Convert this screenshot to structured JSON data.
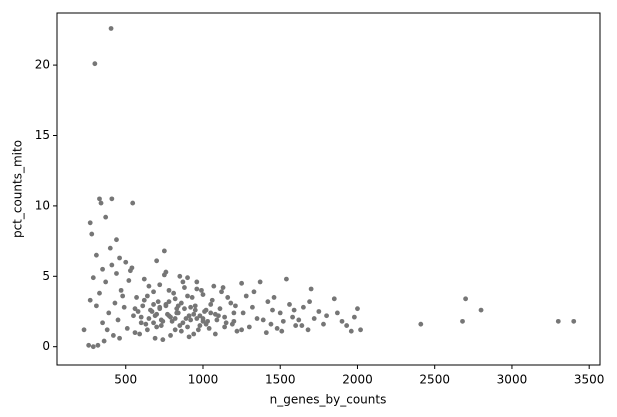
{
  "chart_data": {
    "type": "scatter",
    "x_label": "n_genes_by_counts",
    "y_label": "pct_counts_mito",
    "color": "#767676",
    "xlim": [
      55,
      3570
    ],
    "ylim": [
      -1.3,
      23.7
    ],
    "xticks": [
      500,
      1000,
      1500,
      2000,
      2500,
      3000,
      3500
    ],
    "yticks": [
      0,
      5,
      10,
      15,
      20
    ],
    "x": [
      405,
      300,
      330,
      340,
      410,
      545,
      370,
      270,
      280,
      440,
      310,
      750,
      2700,
      2800,
      2680,
      2410,
      3300,
      3400,
      1850,
      2000,
      1540,
      1700,
      1250,
      1370,
      230,
      260,
      290,
      320,
      1960,
      2020,
      1900,
      1800,
      1750,
      1650,
      1600,
      1580,
      1450,
      1480,
      1420,
      1350,
      1300,
      1320,
      1280,
      1220,
      1200,
      1180,
      1150,
      1130,
      1100,
      1080,
      1050,
      1030,
      1010,
      990,
      970,
      950,
      930,
      910,
      890,
      870,
      850,
      830,
      810,
      790,
      770,
      750,
      730,
      710,
      690,
      670,
      650,
      630,
      610,
      590,
      570,
      550,
      530,
      510,
      490,
      470,
      450,
      430,
      410,
      390,
      370,
      350,
      330,
      310,
      290,
      270,
      600,
      620,
      640,
      660,
      680,
      700,
      720,
      740,
      760,
      780,
      800,
      820,
      840,
      860,
      880,
      900,
      920,
      940,
      960,
      980,
      1000,
      1020,
      1040,
      1060,
      1090,
      1110,
      1140,
      1160,
      1190,
      1210,
      560,
      580,
      620,
      680,
      720,
      760,
      820,
      880,
      940,
      1000,
      500,
      540,
      700,
      760,
      850,
      900,
      960,
      1070,
      1120,
      1260,
      1390,
      1440,
      1500,
      1520,
      1560,
      1620,
      1680,
      1720,
      1780,
      1870,
      360,
      380,
      420,
      460,
      480,
      520,
      460,
      440,
      400,
      350,
      650,
      700,
      740,
      790,
      830,
      870,
      910,
      950,
      1000,
      1050,
      680,
      720,
      780,
      840,
      900,
      960,
      1020,
      1080,
      1140,
      1200,
      560,
      600,
      640,
      690,
      730,
      780,
      820,
      860,
      920,
      980,
      1330,
      1460,
      1590,
      1640,
      1690,
      1930,
      1980,
      1410,
      1510,
      1250
    ],
    "values": [
      22.6,
      20.1,
      10.5,
      10.2,
      10.5,
      10.2,
      9.2,
      8.8,
      8.0,
      7.6,
      6.5,
      6.8,
      3.4,
      2.6,
      1.8,
      1.6,
      1.8,
      1.8,
      3.4,
      2.7,
      4.8,
      4.1,
      4.5,
      4.6,
      1.2,
      0.1,
      0.0,
      0.1,
      1.1,
      1.2,
      1.8,
      2.2,
      2.5,
      2.8,
      1.5,
      2.1,
      2.6,
      1.3,
      3.2,
      2.0,
      1.4,
      2.8,
      3.6,
      1.1,
      2.4,
      3.1,
      1.7,
      4.2,
      2.2,
      0.9,
      3.0,
      1.8,
      2.5,
      4.0,
      1.2,
      2.9,
      3.5,
      0.7,
      2.0,
      4.6,
      1.5,
      2.7,
      3.8,
      0.8,
      2.3,
      5.1,
      1.9,
      3.2,
      0.6,
      2.5,
      4.3,
      1.6,
      2.9,
      0.9,
      3.5,
      2.2,
      5.4,
      1.3,
      2.8,
      4.0,
      1.9,
      3.1,
      5.8,
      2.4,
      4.6,
      1.7,
      3.8,
      2.9,
      4.9,
      3.3,
      2.1,
      3.3,
      1.2,
      2.6,
      3.9,
      1.4,
      2.8,
      0.5,
      3.0,
      2.2,
      1.8,
      3.4,
      2.4,
      1.1,
      2.7,
      3.6,
      1.9,
      2.3,
      4.1,
      1.5,
      2.0,
      2.6,
      1.3,
      3.3,
      1.9,
      2.7,
      2.1,
      3.5,
      1.6,
      2.9,
      1.0,
      2.5,
      4.8,
      1.7,
      4.4,
      2.9,
      1.2,
      4.2,
      0.9,
      3.7,
      6.0,
      5.6,
      6.1,
      5.3,
      5.0,
      4.9,
      4.6,
      4.3,
      3.9,
      2.4,
      1.9,
      1.6,
      2.4,
      1.8,
      3.0,
      1.9,
      1.2,
      2.0,
      1.6,
      2.4,
      0.4,
      1.2,
      0.8,
      0.6,
      3.6,
      4.7,
      6.3,
      5.2,
      7.0,
      5.5,
      2.0,
      2.3,
      1.8,
      2.1,
      2.4,
      1.7,
      2.2,
      2.6,
      1.8,
      2.4,
      3.0,
      2.7,
      3.2,
      2.9,
      1.4,
      2.0,
      1.6,
      2.3,
      1.4,
      1.8,
      2.7,
      1.7,
      3.6,
      2.2,
      1.5,
      4.0,
      2.0,
      3.1,
      2.8,
      2.2,
      3.9,
      3.5,
      2.6,
      1.5,
      3.2,
      1.5,
      2.1,
      1.0,
      1.1,
      1.2
    ]
  }
}
